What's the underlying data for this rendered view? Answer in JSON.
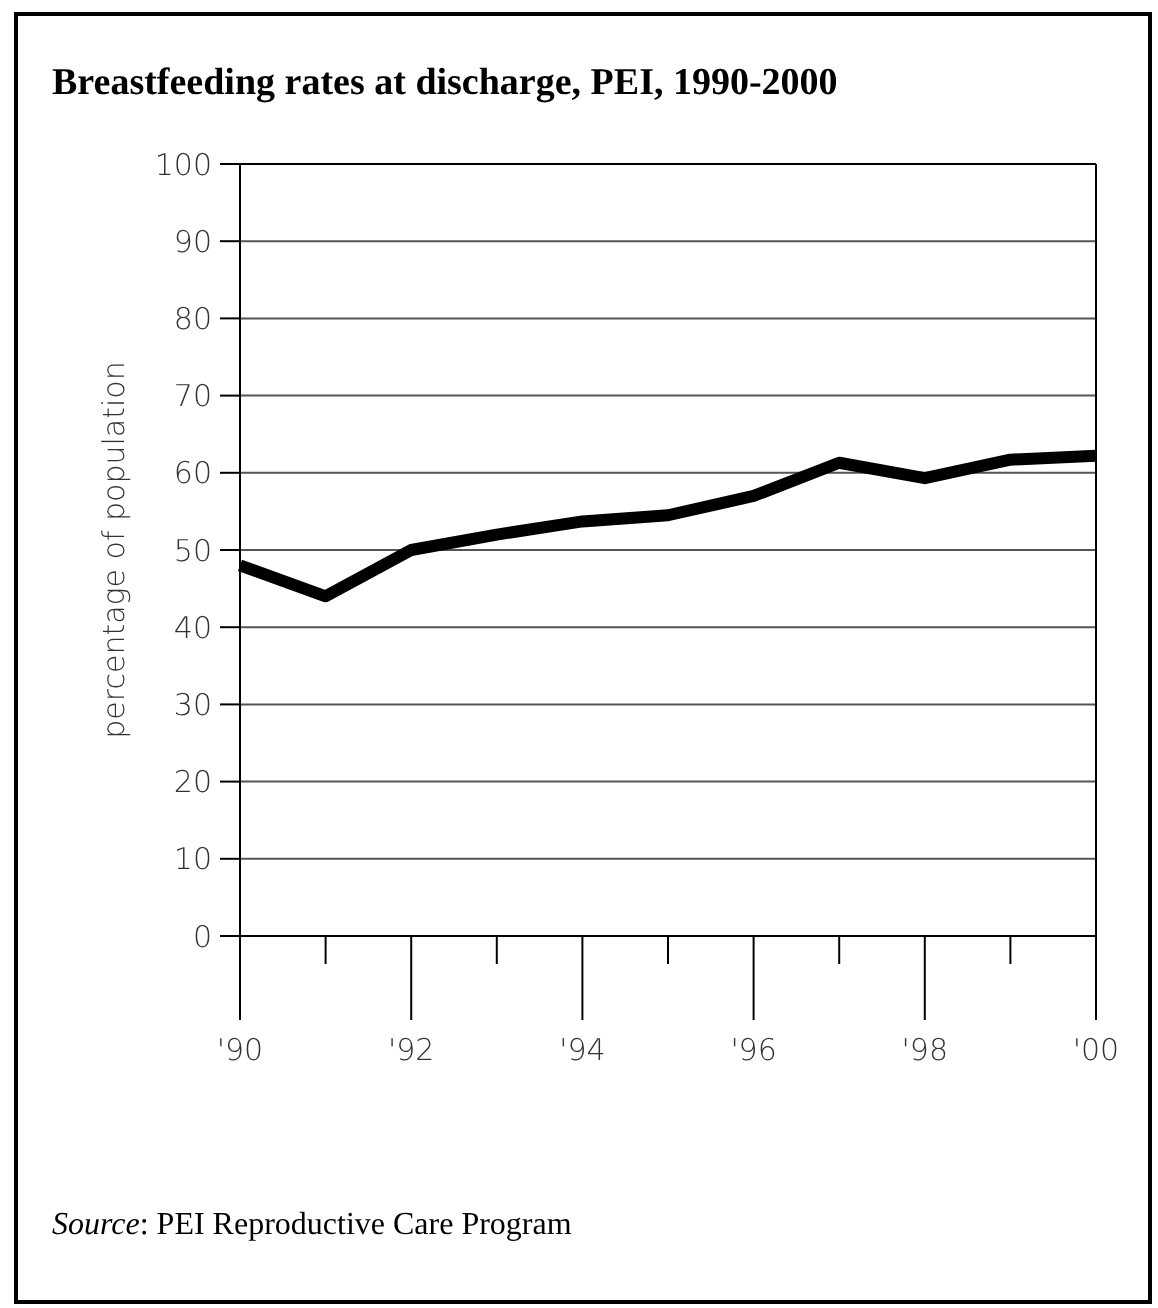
{
  "chart_data": {
    "type": "line",
    "title": "Breastfeeding rates at discharge, PEI, 1990-2000",
    "ylabel": "percentage of population",
    "x": [
      1990,
      1991,
      1992,
      1993,
      1994,
      1995,
      1996,
      1997,
      1998,
      1999,
      2000
    ],
    "series": [
      {
        "color": "#000000",
        "values": [
          48,
          44,
          50,
          52,
          53.7,
          54.5,
          57,
          61.3,
          59.3,
          61.7,
          62.2
        ]
      }
    ],
    "xlim": [
      1990,
      2000
    ],
    "xticks": [
      {
        "value": 1990,
        "label": "'90"
      },
      {
        "value": 1991,
        "label": null
      },
      {
        "value": 1992,
        "label": "'92"
      },
      {
        "value": 1993,
        "label": null
      },
      {
        "value": 1994,
        "label": "'94"
      },
      {
        "value": 1995,
        "label": null
      },
      {
        "value": 1996,
        "label": "'96"
      },
      {
        "value": 1997,
        "label": null
      },
      {
        "value": 1998,
        "label": "'98"
      },
      {
        "value": 1999,
        "label": null
      },
      {
        "value": 2000,
        "label": "'00"
      }
    ],
    "ylim": [
      0,
      100
    ],
    "yticks": [
      0,
      10,
      20,
      30,
      40,
      50,
      60,
      70,
      80,
      90,
      100
    ],
    "grid": "y",
    "marker": "none",
    "line_style": "solid",
    "annotations": [
      "Source: PEI Reproductive Care Program"
    ]
  }
}
